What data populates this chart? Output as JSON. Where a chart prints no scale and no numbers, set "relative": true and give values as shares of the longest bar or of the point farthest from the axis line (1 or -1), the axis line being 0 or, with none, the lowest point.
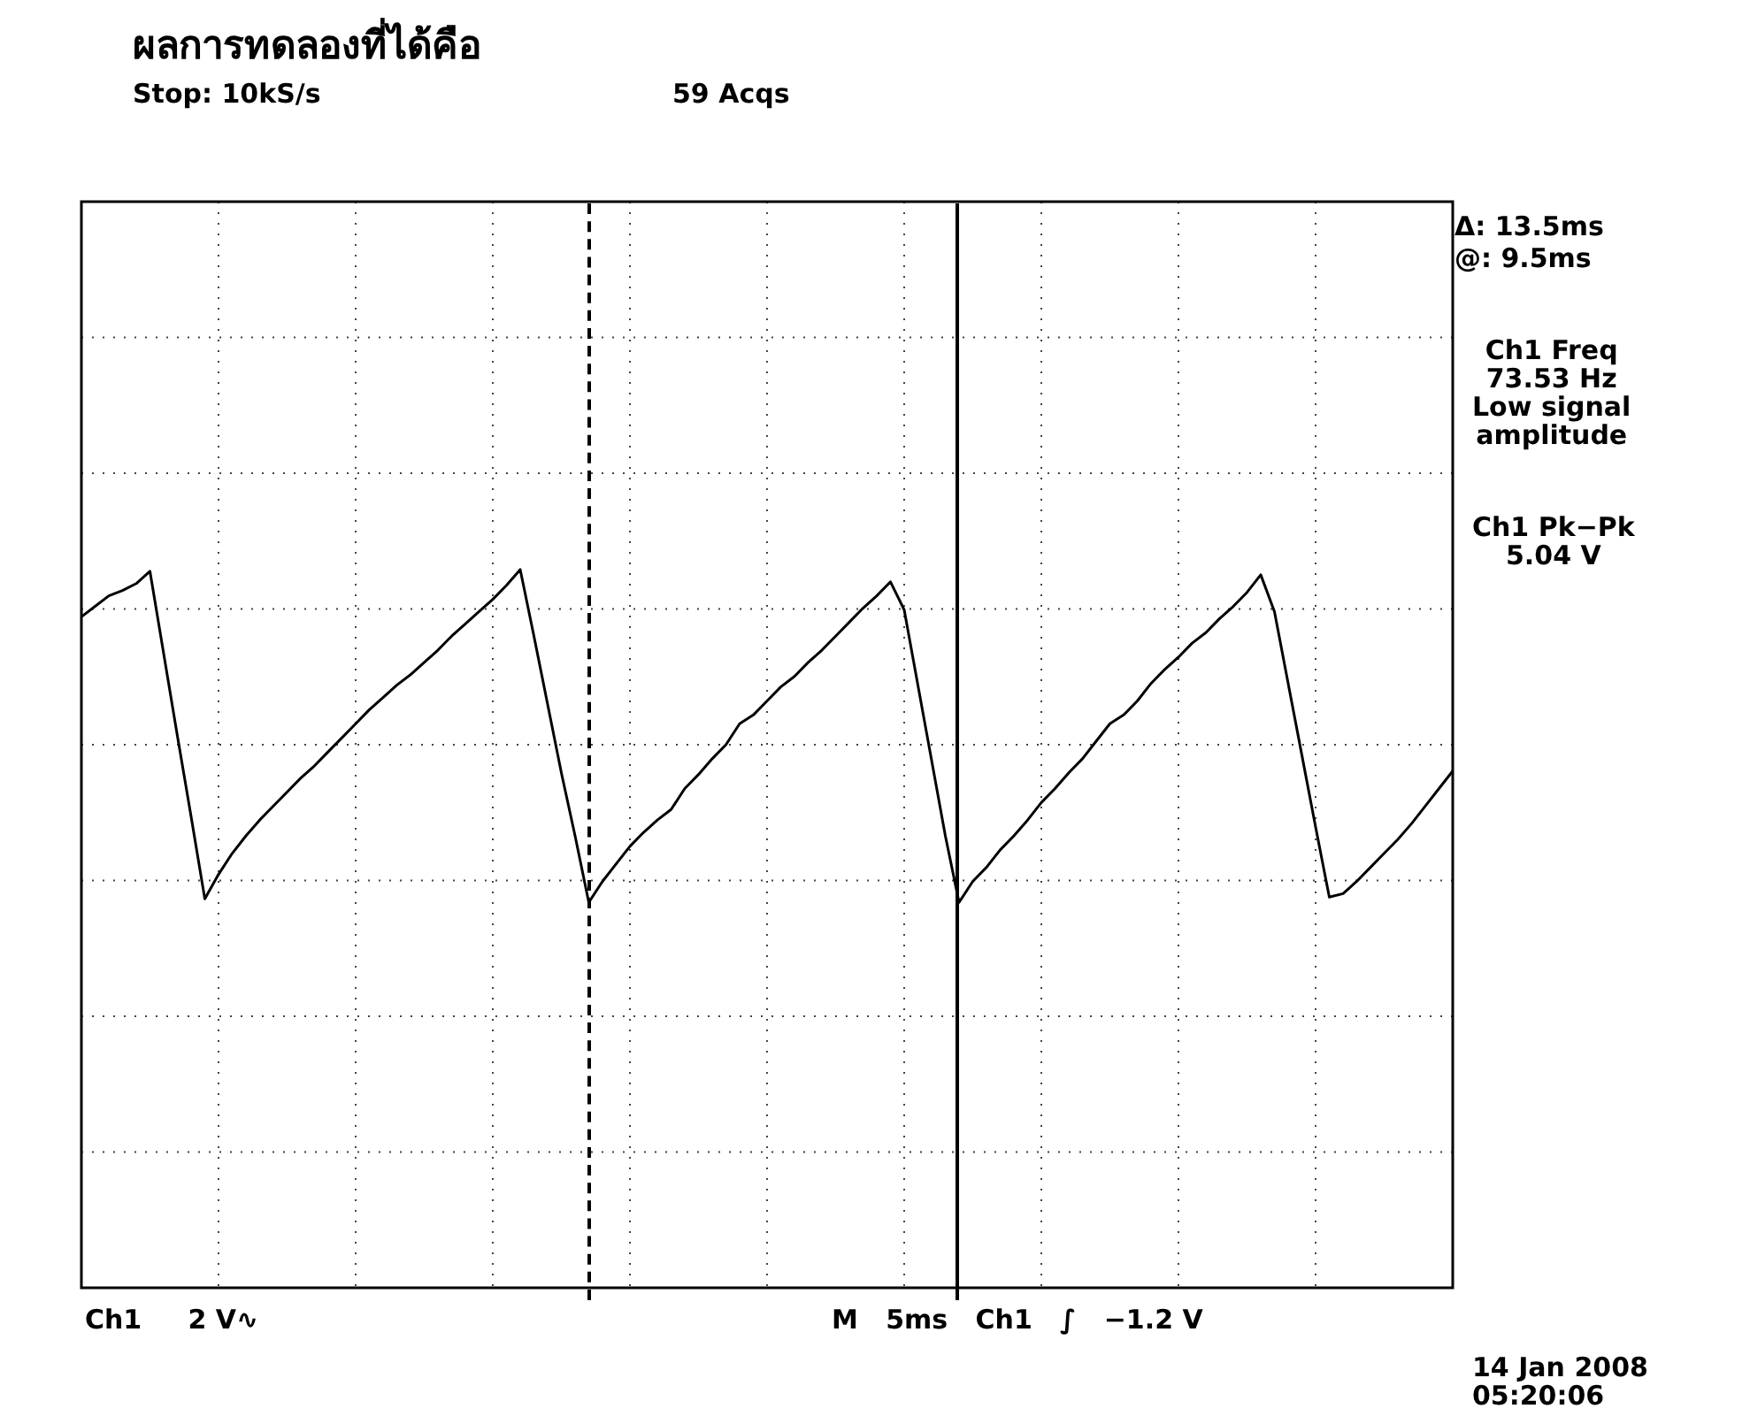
{
  "chart_data": {
    "type": "line",
    "title": "ผลการทดลองที่ได้คือ",
    "annotations": [
      "Stop: 10kS/s",
      "59 Acqs",
      "Δ: 13.5ms",
      "@: 9.5ms",
      "Ch1 Freq\n73.53 Hz\nLow signal\namplitude",
      "Ch1 Pk−Pk\n5.04 V",
      "Ch1     2 V∿",
      "M   5ms   Ch1   ∫   −1.2 V",
      "14 Jan 2008\n05:20:06"
    ],
    "relative": true,
    "categories": [
      null,
      null,
      null,
      null,
      null,
      null,
      null,
      null,
      null,
      null,
      null,
      null,
      null,
      null,
      null,
      null,
      null,
      null,
      null,
      null,
      null,
      null,
      null,
      null,
      null,
      null,
      null,
      null,
      null,
      null,
      null,
      null,
      null,
      null,
      null,
      null,
      null,
      null,
      null,
      null,
      null,
      null,
      null,
      null,
      null,
      null,
      null,
      null,
      null,
      null,
      null,
      null,
      null,
      null,
      null,
      null,
      null,
      null,
      null,
      null,
      null,
      null,
      null,
      null,
      null,
      null,
      null,
      null,
      null,
      null,
      null,
      null,
      null,
      null,
      null,
      null,
      null,
      null,
      null,
      null,
      null,
      null,
      null,
      null,
      null,
      null,
      null,
      null,
      null,
      null,
      null,
      null,
      null,
      null,
      null,
      null,
      null,
      null,
      null,
      null,
      null
    ],
    "series": [
      {
        "color": "#000000",
        "values": [
          0.73,
          0.79,
          0.85,
          0.88,
          0.92,
          0.99,
          0.52,
          0.05,
          -0.41,
          -0.88,
          -0.74,
          -0.62,
          -0.52,
          -0.43,
          -0.35,
          -0.27,
          -0.19,
          -0.12,
          -0.04,
          0.04,
          0.12,
          0.2,
          0.27,
          0.34,
          0.4,
          0.47,
          0.54,
          0.62,
          0.69,
          0.76,
          0.83,
          0.91,
          1,
          0.62,
          0.23,
          -0.16,
          -0.52,
          -0.9,
          -0.78,
          -0.68,
          -0.58,
          -0.5,
          -0.43,
          -0.37,
          -0.25,
          -0.17,
          -0.08,
          0,
          0.12,
          0.17,
          0.25,
          0.33,
          0.39,
          0.47,
          0.54,
          0.62,
          0.7,
          0.78,
          0.85,
          0.93,
          0.77,
          0.34,
          -0.09,
          -0.52,
          -0.9,
          -0.78,
          -0.7,
          -0.6,
          -0.52,
          -0.43,
          -0.33,
          -0.25,
          -0.16,
          -0.08,
          0.02,
          0.12,
          0.17,
          0.25,
          0.35,
          0.43,
          0.5,
          0.58,
          0.64,
          0.72,
          0.79,
          0.87,
          0.97,
          0.76,
          0.35,
          -0.06,
          -0.47,
          -0.87,
          -0.85,
          -0.78,
          -0.7,
          -0.62,
          -0.54,
          -0.45,
          -0.35,
          -0.25,
          -0.15
        ]
      }
    ],
    "grid": true,
    "legend": false,
    "marker": "none",
    "line_style": "solid"
  }
}
